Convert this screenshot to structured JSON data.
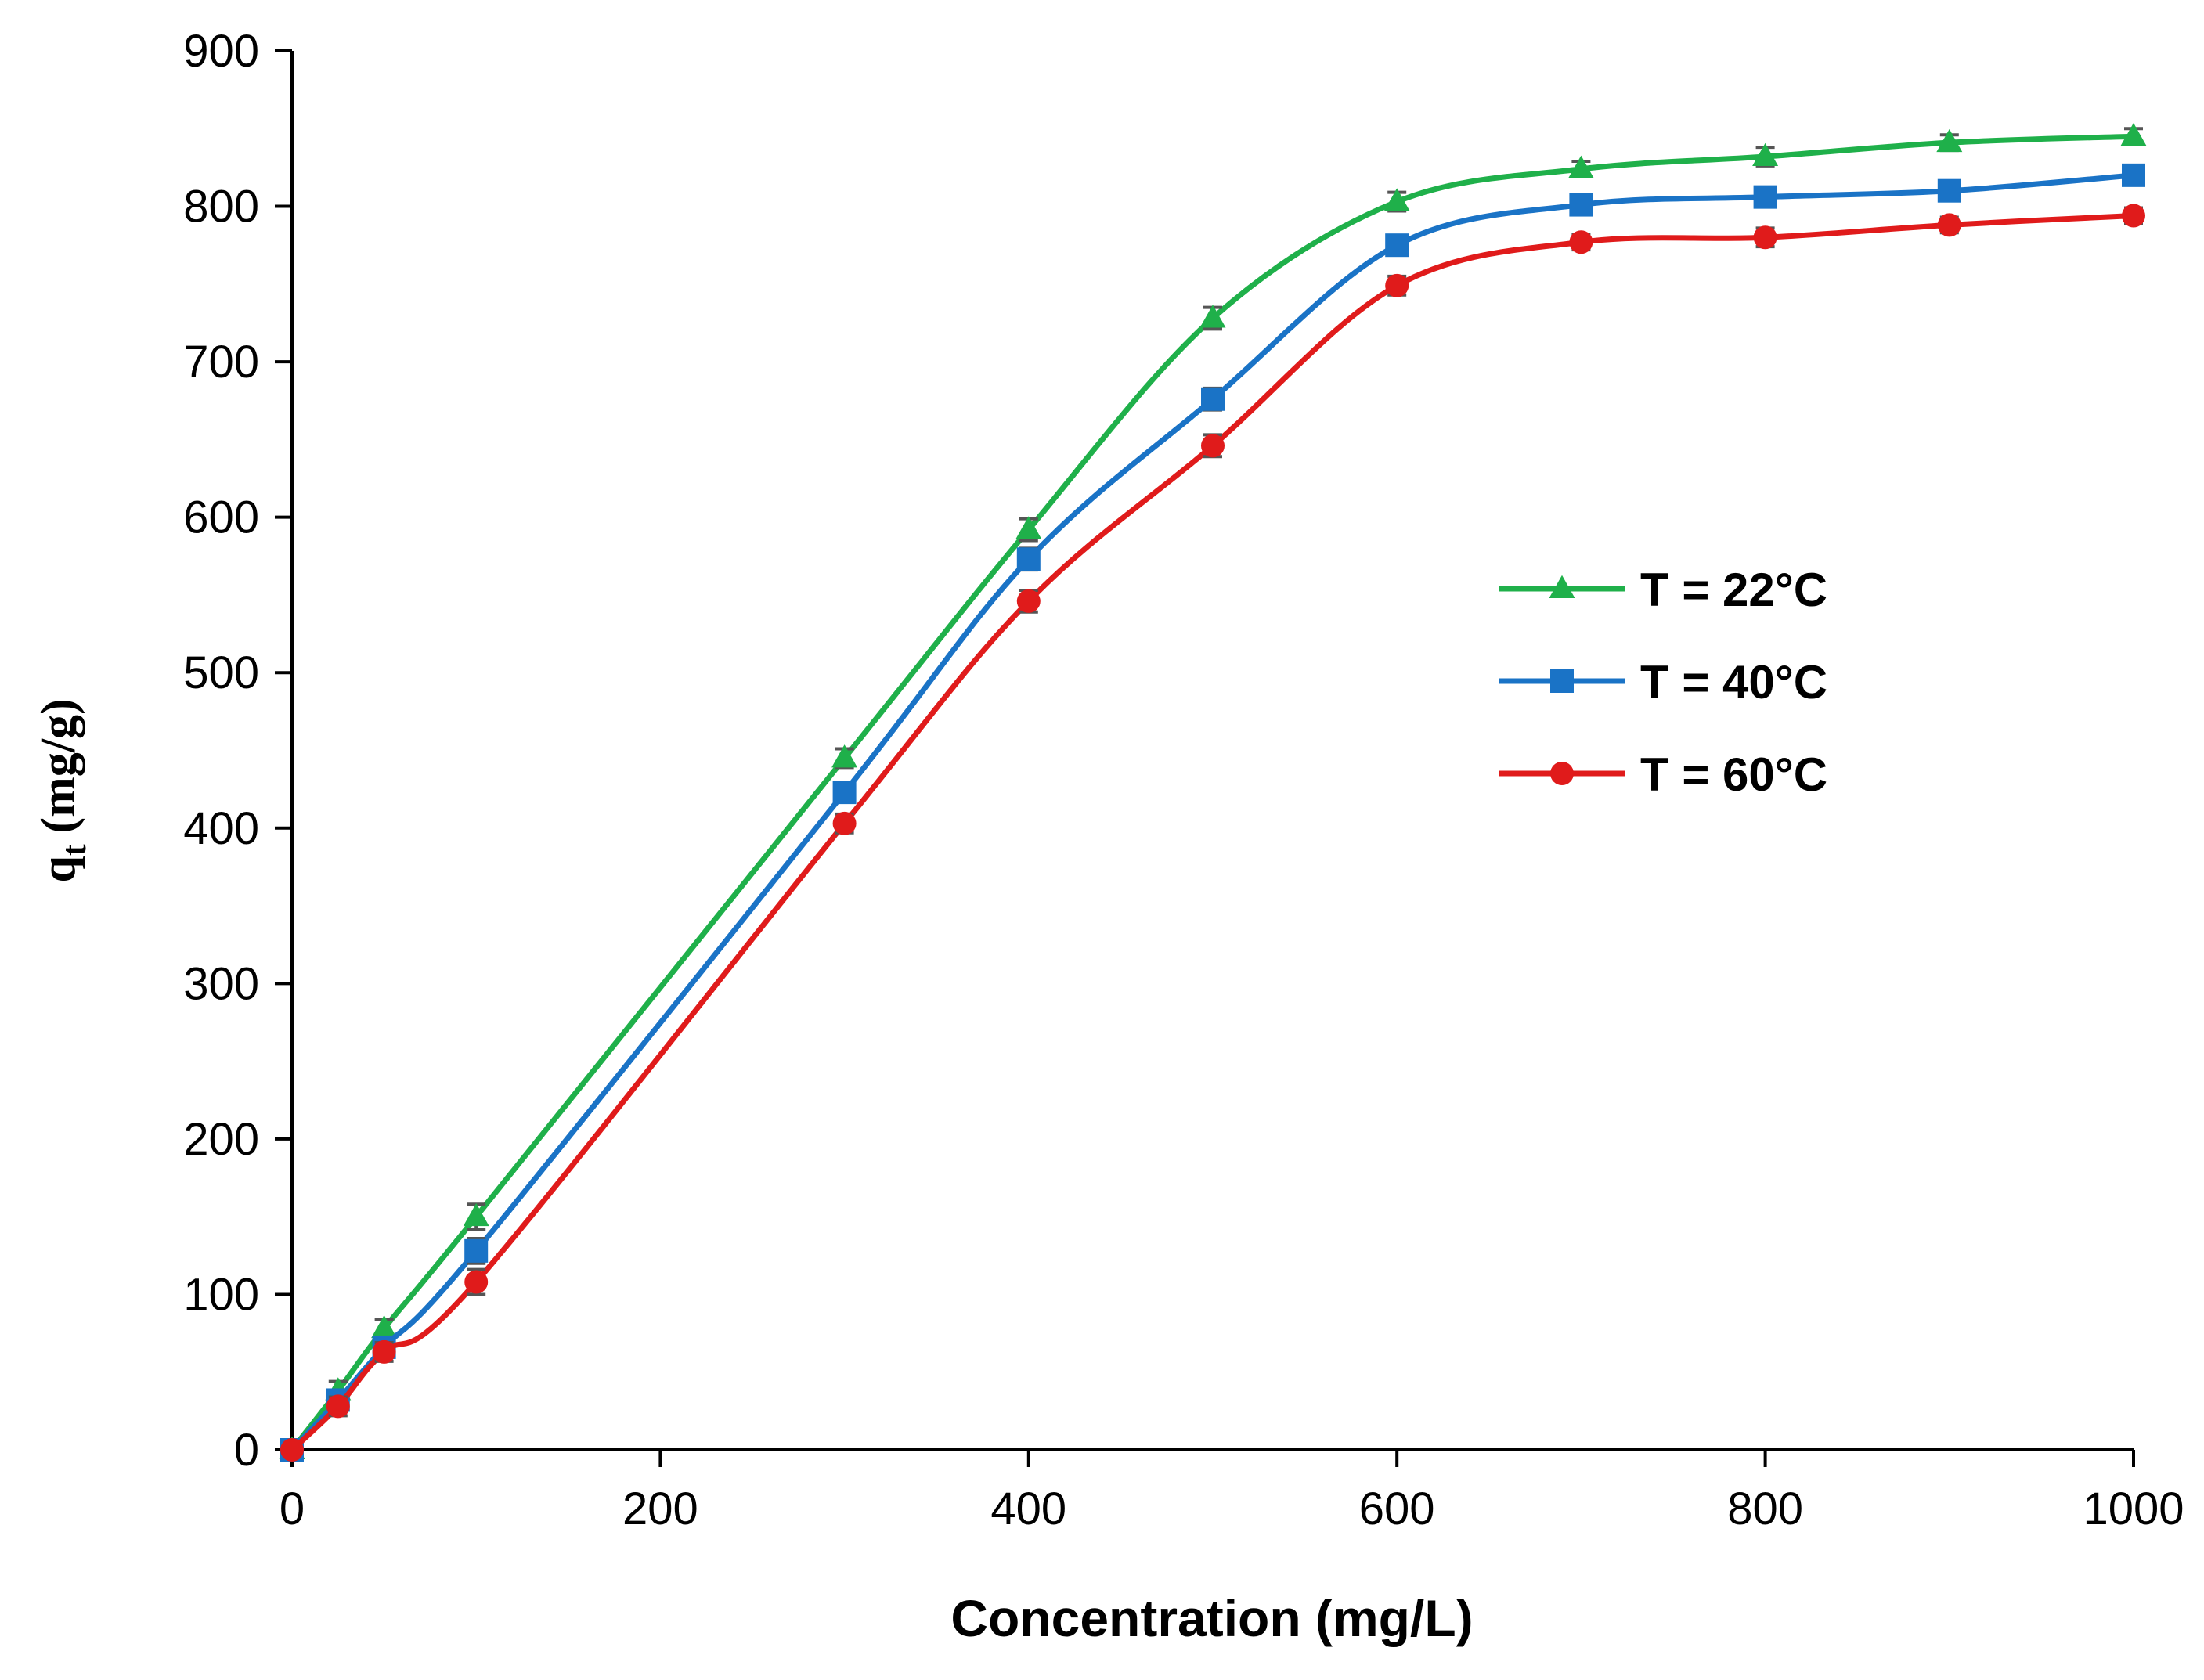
{
  "chart_data": {
    "type": "line",
    "title": "",
    "xlabel": "Concentration (mg/L)",
    "ylabel": {
      "main": "q",
      "sub": "t",
      "unit": "(mg/g)"
    },
    "xlim": [
      0,
      1000
    ],
    "ylim": [
      0,
      900
    ],
    "xticks": [
      0,
      200,
      400,
      600,
      800,
      1000
    ],
    "yticks": [
      0,
      100,
      200,
      300,
      400,
      500,
      600,
      700,
      800,
      900
    ],
    "grid": false,
    "legend_position": "right-center",
    "x": [
      0,
      25,
      50,
      100,
      300,
      400,
      500,
      600,
      700,
      800,
      900,
      1000
    ],
    "series": [
      {
        "name": "T = 22°C",
        "color": "#1fb04a",
        "marker": "triangle",
        "values": [
          0,
          38,
          78,
          150,
          445,
          592,
          728,
          803,
          824,
          832,
          841,
          845
        ],
        "errors": [
          3,
          6,
          6,
          8,
          6,
          7,
          7,
          6,
          5,
          6,
          5,
          5
        ]
      },
      {
        "name": "T = 40°C",
        "color": "#1a73c6",
        "marker": "square",
        "values": [
          0,
          32,
          66,
          128,
          423,
          573,
          676,
          775,
          801,
          806,
          810,
          820
        ],
        "errors": [
          3,
          6,
          6,
          8,
          6,
          7,
          7,
          6,
          5,
          6,
          5,
          5
        ]
      },
      {
        "name": "T = 60°C",
        "color": "#e01b1b",
        "marker": "circle",
        "values": [
          0,
          28,
          63,
          108,
          403,
          546,
          646,
          749,
          777,
          780,
          788,
          794
        ],
        "errors": [
          3,
          6,
          6,
          8,
          6,
          7,
          7,
          6,
          5,
          6,
          5,
          5
        ]
      }
    ]
  }
}
